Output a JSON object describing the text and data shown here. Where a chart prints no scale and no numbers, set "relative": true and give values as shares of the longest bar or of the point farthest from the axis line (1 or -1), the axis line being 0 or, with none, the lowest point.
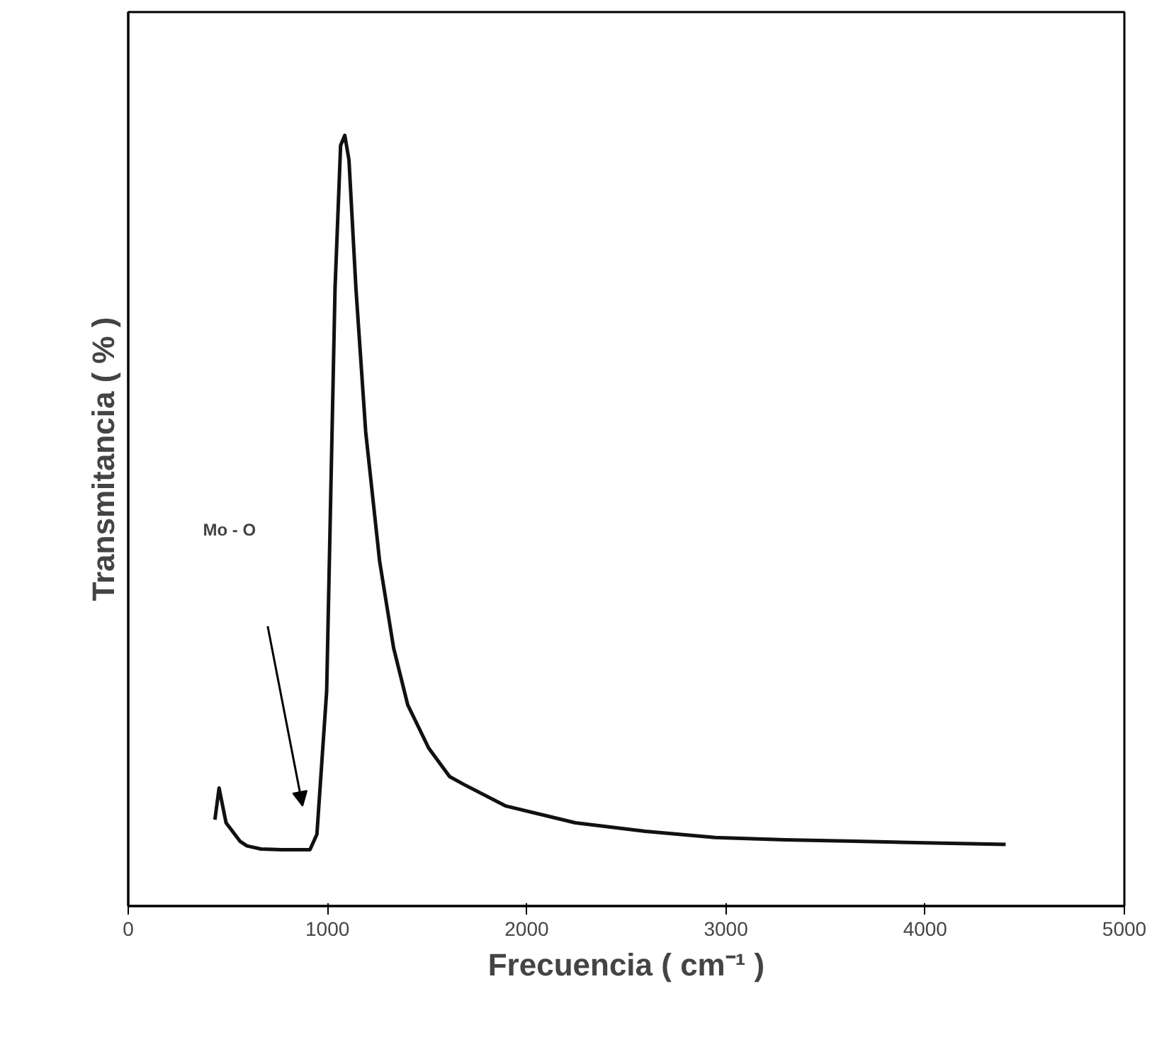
{
  "chart_data": {
    "type": "line",
    "relative": true,
    "xlabel": "Frecuencia ( cm⁻¹ )",
    "ylabel": "Transmitancia ( % )",
    "xlim": [
      0,
      5000
    ],
    "xticks": [
      0,
      1000,
      2000,
      3000,
      4000,
      5000
    ],
    "tick_labels": "x",
    "grid": false,
    "marker": "none",
    "line_style": "solid",
    "x": [
      435,
      456,
      491,
      561,
      596,
      666,
      771,
      912,
      947,
      996,
      1038,
      1066,
      1087,
      1108,
      1143,
      1192,
      1262,
      1332,
      1403,
      1508,
      1613,
      1683,
      1893,
      2244,
      2595,
      2945,
      3296,
      3647,
      3997,
      4404
    ],
    "series": [
      {
        "color": "#111111",
        "values": [
          0.112,
          0.153,
          0.108,
          0.084,
          0.078,
          0.074,
          0.073,
          0.073,
          0.093,
          0.279,
          0.801,
          0.987,
          1,
          0.968,
          0.801,
          0.615,
          0.447,
          0.335,
          0.261,
          0.205,
          0.168,
          0.158,
          0.13,
          0.108,
          0.097,
          0.089,
          0.086,
          0.084,
          0.082,
          0.08
        ]
      }
    ],
    "annotations": [
      "Mo - O"
    ]
  }
}
